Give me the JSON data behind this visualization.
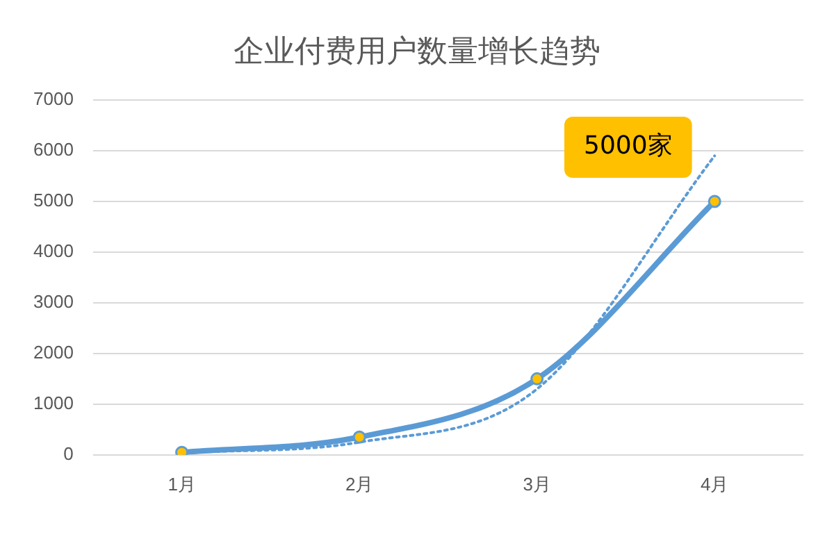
{
  "chart_data": {
    "type": "line",
    "title": "企业付费用户数量增长趋势",
    "categories": [
      "1月",
      "2月",
      "3月",
      "4月"
    ],
    "series": [
      {
        "color": "#5b9bd5",
        "values": [
          50,
          350,
          1500,
          5000
        ],
        "marker": "circle",
        "line_style": "solid"
      },
      {
        "color": "#5b9bd5",
        "values": [
          40,
          250,
          1300,
          5900
        ],
        "marker": "none",
        "line_style": "dotted"
      }
    ],
    "ylim": [
      0,
      7000
    ],
    "yticks": [
      0,
      1000,
      2000,
      3000,
      4000,
      5000,
      6000,
      7000
    ],
    "grid": "y",
    "legend": false,
    "annotations": [
      "5000家"
    ]
  }
}
